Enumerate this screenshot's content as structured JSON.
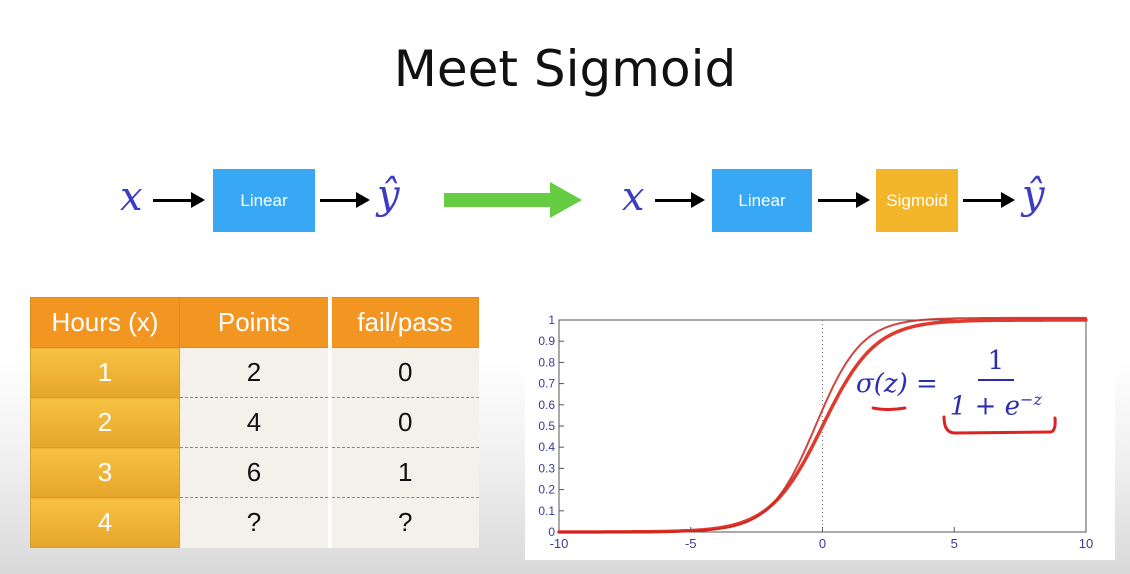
{
  "title": "Meet Sigmoid",
  "pipeline_left": {
    "input": "x",
    "box": "Linear",
    "output": "ŷ"
  },
  "pipeline_right": {
    "input": "x",
    "box1": "Linear",
    "box2": "Sigmoid",
    "output": "ŷ"
  },
  "colors": {
    "linear_box": "#39a8f4",
    "sigmoid_box": "#f3b62b",
    "transform_arrow": "#66cc44",
    "table_header": "#f39521",
    "curve": "#e0392e",
    "math_text": "#3b3bc4"
  },
  "table": {
    "headers": [
      "Hours (x)",
      "Points",
      "fail/pass"
    ],
    "rows": [
      [
        "1",
        "2",
        "0"
      ],
      [
        "2",
        "4",
        "0"
      ],
      [
        "3",
        "6",
        "1"
      ],
      [
        "4",
        "?",
        "?"
      ]
    ]
  },
  "formula": {
    "lhs": "σ(z) =",
    "numerator": "1",
    "denominator": "1 + e",
    "exponent": "−z"
  },
  "chart_data": {
    "type": "line",
    "function": "sigmoid",
    "x": [
      -10,
      -8,
      -6,
      -5,
      -4,
      -3,
      -2,
      -1,
      0,
      1,
      2,
      3,
      4,
      5,
      6,
      8,
      10
    ],
    "series": [
      {
        "values": [
          4.54e-05,
          0.000335,
          0.00247,
          0.00669,
          0.018,
          0.0474,
          0.119,
          0.269,
          0.5,
          0.731,
          0.881,
          0.953,
          0.982,
          0.993,
          0.998,
          0.9997,
          0.99995
        ]
      }
    ],
    "xlim": [
      -10,
      10
    ],
    "ylim": [
      0,
      1
    ],
    "x_ticks": [
      "-10",
      "-5",
      "0",
      "5",
      "10"
    ],
    "y_ticks": [
      "0",
      "0.1",
      "0.2",
      "0.3",
      "0.4",
      "0.5",
      "0.6",
      "0.7",
      "0.8",
      "0.9",
      "1"
    ],
    "vertical_reference_line": 0,
    "grid": false
  }
}
